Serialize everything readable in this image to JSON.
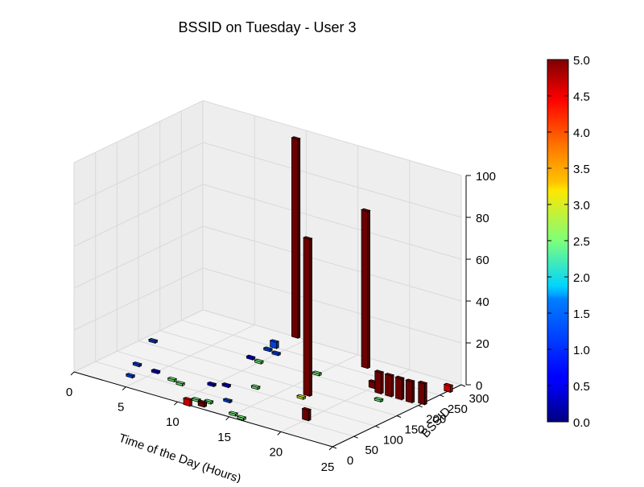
{
  "chart_data": {
    "type": "bar3d",
    "title": "BSSID on Tuesday - User 3",
    "xlabel": "Time of the Day (Hours)",
    "ylabel": "BSSID",
    "zlabel": "",
    "xlim": [
      0,
      25
    ],
    "ylim": [
      0,
      300
    ],
    "zlim": [
      0,
      100
    ],
    "xticks": [
      "0",
      "5",
      "10",
      "15",
      "20",
      "25"
    ],
    "yticks": [
      "0",
      "50",
      "100",
      "150",
      "200",
      "250",
      "300"
    ],
    "zticks": [
      "0",
      "20",
      "40",
      "60",
      "80",
      "100"
    ],
    "colorbar": {
      "min": 0,
      "max": 5,
      "ticks": [
        "0.0",
        "0.5",
        "1.0",
        "1.5",
        "2.0",
        "2.5",
        "3.0",
        "3.5",
        "4.0",
        "4.5",
        "5.0"
      ],
      "colormap": "jet"
    },
    "bars": [
      {
        "x": 1,
        "y": 160,
        "z": 1,
        "c": 1.0
      },
      {
        "x": 3,
        "y": 75,
        "z": 1,
        "c": 1.0
      },
      {
        "x": 4,
        "y": 35,
        "z": 1,
        "c": 1.0
      },
      {
        "x": 5,
        "y": 70,
        "z": 1,
        "c": 0.5
      },
      {
        "x": 7,
        "y": 60,
        "z": 1,
        "c": 2.5
      },
      {
        "x": 8,
        "y": 55,
        "z": 1,
        "c": 2.5
      },
      {
        "x": 9,
        "y": 195,
        "z": 1,
        "c": 0.5
      },
      {
        "x": 9,
        "y": 235,
        "z": 1,
        "c": 1.0
      },
      {
        "x": 10,
        "y": 230,
        "z": 1,
        "c": 1.0
      },
      {
        "x": 10,
        "y": 190,
        "z": 1,
        "c": 2.5
      },
      {
        "x": 9,
        "y": 300,
        "z": 95,
        "c": 5.0
      },
      {
        "x": 9,
        "y": 250,
        "z": 3,
        "c": 1.0
      },
      {
        "x": 10,
        "y": 80,
        "z": 1,
        "c": 0.5
      },
      {
        "x": 11,
        "y": 90,
        "z": 1,
        "c": 0.5
      },
      {
        "x": 11,
        "y": 20,
        "z": 1,
        "c": 2.5
      },
      {
        "x": 11,
        "y": 0,
        "z": 3,
        "c": 4.5
      },
      {
        "x": 12,
        "y": 10,
        "z": 2,
        "c": 5.0
      },
      {
        "x": 12,
        "y": 25,
        "z": 1,
        "c": 2.5
      },
      {
        "x": 13,
        "y": 45,
        "z": 1,
        "c": 1.0
      },
      {
        "x": 13,
        "y": 110,
        "z": 1,
        "c": 2.5
      },
      {
        "x": 15,
        "y": 205,
        "z": 1,
        "c": 2.5
      },
      {
        "x": 15,
        "y": 10,
        "z": 1,
        "c": 2.5
      },
      {
        "x": 16,
        "y": 5,
        "z": 1,
        "c": 2.5
      },
      {
        "x": 17,
        "y": 270,
        "z": 75,
        "c": 5.0
      },
      {
        "x": 17,
        "y": 135,
        "z": 75,
        "c": 5.0
      },
      {
        "x": 17,
        "y": 120,
        "z": 1,
        "c": 3.0
      },
      {
        "x": 20,
        "y": 60,
        "z": 5,
        "c": 5.0
      },
      {
        "x": 20,
        "y": 215,
        "z": 3,
        "c": 5.0
      },
      {
        "x": 21,
        "y": 205,
        "z": 10,
        "c": 5.0
      },
      {
        "x": 22,
        "y": 205,
        "z": 10,
        "c": 5.0
      },
      {
        "x": 23,
        "y": 205,
        "z": 10,
        "c": 5.0
      },
      {
        "x": 24,
        "y": 205,
        "z": 10,
        "c": 5.0
      },
      {
        "x": 25,
        "y": 210,
        "z": 10,
        "c": 5.0
      },
      {
        "x": 22,
        "y": 180,
        "z": 1,
        "c": 2.5
      },
      {
        "x": 25,
        "y": 270,
        "z": 3,
        "c": 4.5
      }
    ]
  }
}
